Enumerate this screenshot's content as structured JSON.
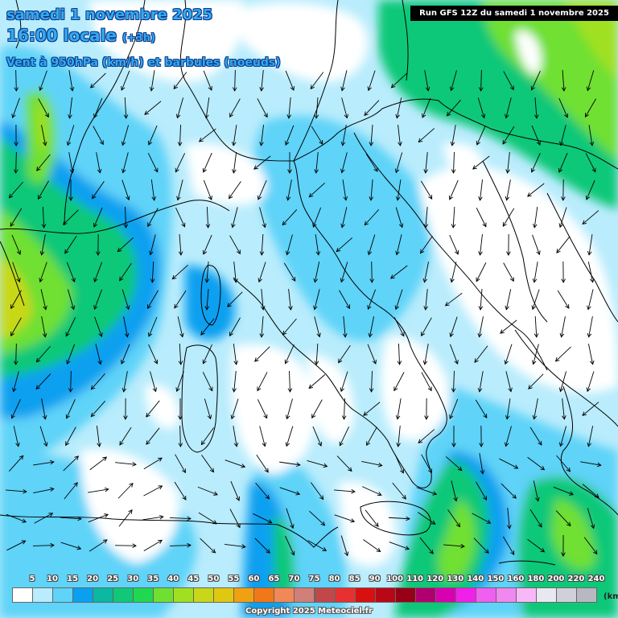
{
  "header": {
    "date_line": "samedi 1 novembre 2025",
    "time_line": "16:00 locale",
    "lead_time": "(+3h)",
    "product_line": "Vent à 950hPa (km/h) et barbules (noeuds)"
  },
  "run_info": "Run GFS 12Z du samedi 1 novembre 2025",
  "legend": {
    "unit": "(km",
    "ticks": [
      "5",
      "10",
      "15",
      "20",
      "25",
      "30",
      "35",
      "40",
      "45",
      "50",
      "55",
      "60",
      "65",
      "70",
      "75",
      "80",
      "85",
      "90",
      "100",
      "110",
      "120",
      "130",
      "140",
      "150",
      "160",
      "180",
      "200",
      "220",
      "240"
    ],
    "colors": [
      "#ffffff",
      "#b9ecfc",
      "#5fd3f8",
      "#0aa0f0",
      "#0bb8a0",
      "#10c878",
      "#20d850",
      "#70e030",
      "#a0e020",
      "#c8d818",
      "#e0c810",
      "#f0a010",
      "#f07818",
      "#f08858",
      "#d08078",
      "#c04848",
      "#e83030",
      "#d81010",
      "#b80818",
      "#980018",
      "#b00070",
      "#d800b0",
      "#f020e8",
      "#f060f0",
      "#f088f0",
      "#f8b8f8",
      "#e8e8f0",
      "#d0d0d8",
      "#b8b8c0"
    ]
  },
  "copyright": "Copyright 2025 Meteociel.fr",
  "map": {
    "area": "Méditerranée occidentale / Italie / Balkans",
    "overall_flow": "nord-nord-est vers sud-sud-ouest",
    "wind_colors": {
      "calm": "#ffffff",
      "light": "#b9ecfc",
      "moderate": "#5fd3f8",
      "fresh": "#0aa0f0",
      "strong": "#10c878",
      "stronger": "#70e030",
      "strongest": "#c8d818"
    }
  }
}
